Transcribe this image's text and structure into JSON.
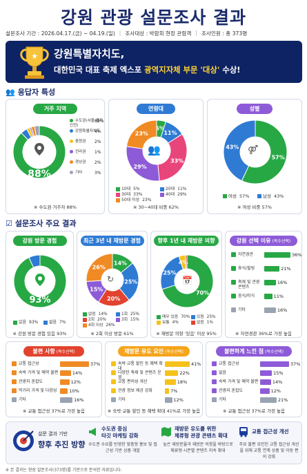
{
  "title": "강원 관광 설문조사 결과",
  "meta": [
    "설문조사 기간 : 2026.04.17.(금) ~ 04.19.(일)",
    "|",
    "조사대상 : 박람회 현장 관람객",
    "|",
    "조사인원 : 총 373명"
  ],
  "banner": {
    "line1": "강원특별자치도,",
    "line2_pre": "대한민국 대표 축제 엑스포 ",
    "line2_hl": "광역지자체 부문 '대상'",
    "line2_post": " 수상!"
  },
  "section1": "응답자 특성",
  "section2": "설문조사 주요 결과",
  "colors": {
    "green": "#27a845",
    "blue": "#2f7bd4",
    "purple": "#8e5bd8",
    "orange": "#f08a24",
    "pink": "#e8457a",
    "yellow": "#f5c21c",
    "red": "#e2432f",
    "teal": "#27b8a6",
    "navy": "#1a2b6b"
  },
  "chart_data": [
    {
      "id": "region",
      "type": "pie",
      "title": "거주 지역",
      "categories": [
        "수도권(서울·경기·인천)",
        "강원특별자치도",
        "충청권",
        "전라권",
        "경상권",
        "기타"
      ],
      "values": [
        88,
        4,
        2,
        1,
        2,
        3
      ],
      "labels": [
        "88%",
        "4%",
        "2%",
        "1%",
        "2%",
        "3%"
      ],
      "center": "88%",
      "colors": [
        "#27a845",
        "#2f7bd4",
        "#f5c21c",
        "#8e5bd8",
        "#f08a24",
        "#9aa3b2"
      ],
      "note": "※ 수도권 거주자 88%"
    },
    {
      "id": "age",
      "type": "pie",
      "title": "연령대",
      "categories": [
        "10대",
        "20대",
        "30대",
        "40대",
        "50대 이상"
      ],
      "values": [
        5,
        11,
        33,
        29,
        23
      ],
      "labels": [
        "5%",
        "11%",
        "33%",
        "29%",
        "23%"
      ],
      "colors": [
        "#27a845",
        "#2f7bd4",
        "#e8457a",
        "#8e5bd8",
        "#f08a24"
      ],
      "note": "※ 30~40대 비중 62%"
    },
    {
      "id": "gender",
      "type": "pie",
      "title": "성별",
      "categories": [
        "여성",
        "남성"
      ],
      "values": [
        57,
        43
      ],
      "labels": [
        "57%",
        "43%"
      ],
      "colors": [
        "#27a845",
        "#2f7bd4"
      ],
      "note": "※ 여성 비중 57%"
    },
    {
      "id": "visit",
      "type": "pie",
      "title": "강원 방문 경험",
      "categories": [
        "있음",
        "없음"
      ],
      "values": [
        93,
        7
      ],
      "labels": [
        "93%",
        "7%"
      ],
      "center": "93%",
      "colors": [
        "#27a845",
        "#2f7bd4"
      ],
      "note": "※ 강원 방문 경험 있음 93%"
    },
    {
      "id": "revisit3",
      "type": "pie",
      "title": "최근 3년 내 재방문 경험",
      "categories": [
        "없음",
        "1회",
        "2회",
        "3회",
        "4회 이상"
      ],
      "values": [
        14,
        25,
        20,
        15,
        26
      ],
      "labels": [
        "14%",
        "25%",
        "20%",
        "15%",
        "26%"
      ],
      "colors": [
        "#27a845",
        "#2f7bd4",
        "#e2432f",
        "#8e5bd8",
        "#f08a24"
      ],
      "note": "※ 2회 이상 방문 61%"
    },
    {
      "id": "revisit1",
      "type": "pie",
      "title": "향후 1년 내 재방문 의향",
      "categories": [
        "매우 있음",
        "있음",
        "보통",
        "없음"
      ],
      "values": [
        70,
        25,
        4,
        1
      ],
      "labels": [
        "70%",
        "25%",
        "4%",
        "1%"
      ],
      "colors": [
        "#27a845",
        "#2f7bd4",
        "#f5c21c",
        "#e2432f"
      ],
      "note": "※ 재방문 의향 '있음' 이상 95%"
    },
    {
      "id": "reason",
      "type": "bar",
      "title": "강원 선택 이유",
      "title_sub": "(복수선택)",
      "categories": [
        "자연경관",
        "휴식/힐링",
        "축제 및 관광 콘텐츠",
        "음식/미식",
        "기타"
      ],
      "values": [
        36,
        21,
        16,
        11,
        16
      ],
      "labels": [
        "36%",
        "21%",
        "16%",
        "11%",
        "16%"
      ],
      "colors": [
        "#27a845",
        "#27a845",
        "#27a845",
        "#27a845",
        "#9aa3b2"
      ],
      "xlim": [
        0,
        36
      ],
      "note": "※ 자연경관 36%로 가장 높음"
    },
    {
      "id": "inconv",
      "type": "bar",
      "title": "불편 사항",
      "title_sub": "(복수선택)",
      "categories": [
        "교통 접근성",
        "숙박 가격 및 예약 불편",
        "관광지 혼잡도",
        "먹거리 가격 및 다양성",
        "기타"
      ],
      "values": [
        37,
        14,
        12,
        10,
        16
      ],
      "labels": [
        "37%",
        "14%",
        "12%",
        "10%",
        "16%"
      ],
      "colors": [
        "#f08a24",
        "#f08a24",
        "#f08a24",
        "#f08a24",
        "#9aa3b2"
      ],
      "xlim": [
        0,
        37
      ],
      "note": "※ 교통 접근성 37%로 가장 높음"
    },
    {
      "id": "factor",
      "type": "bar",
      "title": "재방문 유도 요인",
      "title_sub": "(복수선택)",
      "categories": [
        "숙박·교통 할인 등 혜택 확대",
        "다양한 축제 및 콘텐츠 운영",
        "교통 편의성 개선",
        "관광 정보 제공 강화",
        "기타"
      ],
      "values": [
        41,
        22,
        18,
        7,
        12
      ],
      "labels": [
        "41%",
        "22%",
        "18%",
        "7%",
        "12%"
      ],
      "colors": [
        "#f5c21c",
        "#f5c21c",
        "#f5c21c",
        "#f5c21c",
        "#9aa3b2"
      ],
      "xlim": [
        0,
        41
      ],
      "note": "※ 숙박·교통 할인 등 혜택 확대 41%로 가장 높음"
    },
    {
      "id": "felt",
      "type": "bar",
      "title": "불편하게 느낀 점",
      "title_sub": "(복수선택)",
      "categories": [
        "교통 접근성",
        "없음",
        "숙박 가격 및 예약 불편",
        "관광지 혼잡도",
        "기타"
      ],
      "values": [
        37,
        15,
        14,
        12,
        21
      ],
      "labels": [
        "37%",
        "15%",
        "14%",
        "12%",
        "21%"
      ],
      "colors": [
        "#8e5bd8",
        "#8e5bd8",
        "#8e5bd8",
        "#8e5bd8",
        "#9aa3b2"
      ],
      "xlim": [
        0,
        37
      ],
      "note": "※ 교통 접근성 37%로 가장 높음"
    }
  ],
  "bottom": {
    "label_small": "설문 결과 기반",
    "label_big": "향후 추진 방향",
    "items": [
      {
        "title1": "수도권 중심",
        "title2": "타깃 마케팅 강화",
        "desc": "수도권 수요를 반영한 맞춤형 홍보 및 접근성 기반 상품 개발"
      },
      {
        "title1": "재방문 유도를 위한",
        "title2": "체류형 관광 콘텐츠 확대",
        "desc": "높은 재방문율과 재방문 의향을 바탕으로 체류형·시즌별 콘텐츠 지속 확대"
      },
      {
        "title1": "교통 접근성 개선",
        "title2": "",
        "desc": "주요 불편 요인인 교통 접근성 개선을 위해 교통 연계 상품 및 이동 편의 강화"
      }
    ]
  },
  "footer": "※ 본 결과는 현장 설문조사(373명)를 기반으로 분석한 자료입니다."
}
